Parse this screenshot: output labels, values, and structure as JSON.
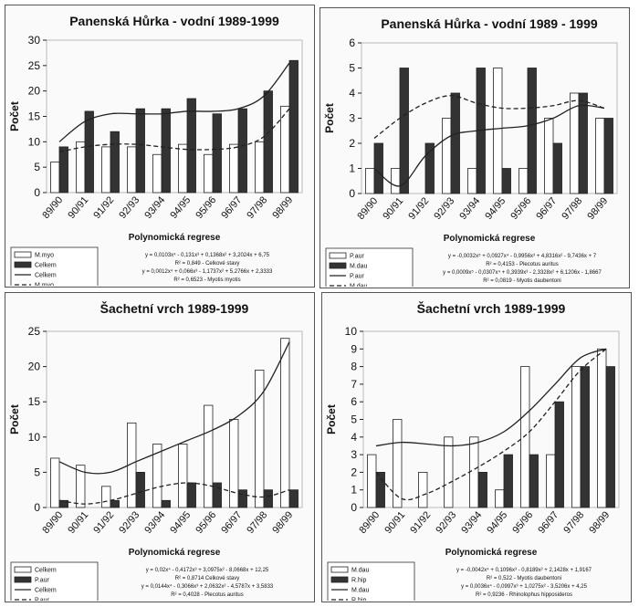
{
  "chart_data": [
    {
      "type": "bar",
      "title": "Panenská Hůrka - vodní 1989-1999",
      "x_label": "Polynomická regrese",
      "y_label": "Počet",
      "categories": [
        "89/90",
        "90/91",
        "91/92",
        "92/93",
        "93/94",
        "94/95",
        "95/96",
        "96/97",
        "97/98",
        "98/99"
      ],
      "ylim": [
        0,
        30
      ],
      "yticks": [
        0,
        5,
        10,
        15,
        20,
        25,
        30
      ],
      "series": [
        {
          "name": "M.myo",
          "type": "bar",
          "color": "#ffffff",
          "values": [
            6,
            10,
            9,
            9,
            7.5,
            9.5,
            7.5,
            9.5,
            10,
            17
          ]
        },
        {
          "name": "Celkem",
          "type": "bar",
          "color": "#333333",
          "values": [
            9,
            16,
            12,
            16.5,
            16.5,
            18.5,
            15.5,
            16.5,
            20,
            26
          ]
        },
        {
          "name": "Celkem",
          "type": "line",
          "color": "#222222",
          "dashed": false,
          "values": [
            10,
            14,
            15.5,
            15.5,
            15.5,
            16,
            16,
            16.5,
            19,
            25.5
          ]
        },
        {
          "name": "M.myo",
          "type": "line",
          "color": "#222222",
          "dashed": true,
          "values": [
            8,
            9,
            9.5,
            9.5,
            9,
            8.5,
            8.5,
            9,
            11,
            16.5
          ]
        }
      ],
      "annotations": [
        "y = 0,0103x⁴ - 0,131x³ + 0,1368x² + 3,2024x + 6,75",
        "R² = 0,849 - Celkové stavy",
        "y = 0,0012x⁴ + 0,066x³ - 1,1737x² + 5,2766x + 2,3333",
        "R² = 0,6523 - Myotis myotis"
      ]
    },
    {
      "type": "bar",
      "title": "Panenská Hůrka - vodní 1989 - 1999",
      "x_label": "Polynomická regrese",
      "y_label": "Počet",
      "categories": [
        "89/90",
        "90/91",
        "91/92",
        "92/93",
        "93/94",
        "94/95",
        "95/96",
        "96/97",
        "97/98",
        "98/99"
      ],
      "ylim": [
        0,
        6
      ],
      "yticks": [
        0,
        1,
        2,
        3,
        4,
        5,
        6
      ],
      "series": [
        {
          "name": "P.aur",
          "type": "bar",
          "color": "#ffffff",
          "values": [
            1,
            1,
            0,
            3,
            1,
            5,
            1,
            3,
            4,
            3
          ]
        },
        {
          "name": "M.dau",
          "type": "bar",
          "color": "#333333",
          "values": [
            2,
            5,
            2,
            4,
            5,
            1,
            5,
            2,
            4,
            3
          ]
        },
        {
          "name": "P.aur",
          "type": "line",
          "color": "#222222",
          "dashed": false,
          "values": [
            1,
            0.3,
            1.5,
            2.3,
            2.5,
            2.6,
            2.7,
            3,
            3.5,
            3.4
          ]
        },
        {
          "name": "M.dau",
          "type": "line",
          "color": "#222222",
          "dashed": true,
          "values": [
            2.2,
            3,
            3.6,
            3.9,
            3.6,
            3.4,
            3.4,
            3.5,
            3.7,
            3.4
          ]
        }
      ],
      "annotations": [
        "y = -0,0032x⁵ + 0,0927x⁴ - 0,9956x³ + 4,8316x² - 9,7436x + 7",
        "R² = 0,4153 - Plecotus auritus",
        "y = 0,0009x⁵ - 0,0307x⁴ + 0,3939x³ - 2,3328x² + 6,1206x - 1,8667",
        "R² = 0,0819 - Myotis daubentoni"
      ]
    },
    {
      "type": "bar",
      "title": "Šachetní vrch 1989-1999",
      "x_label": "Polynomická regrese",
      "y_label": "Počet",
      "categories": [
        "89/90",
        "90/91",
        "91/92",
        "92/93",
        "93/94",
        "94/95",
        "95/96",
        "96/97",
        "97/98",
        "98/99"
      ],
      "ylim": [
        0,
        25
      ],
      "yticks": [
        0,
        5,
        10,
        15,
        20,
        25
      ],
      "series": [
        {
          "name": "Celkem",
          "type": "bar",
          "color": "#ffffff",
          "values": [
            7,
            6,
            3,
            12,
            9,
            9,
            14.5,
            12.5,
            19.5,
            24
          ]
        },
        {
          "name": "P.aur",
          "type": "bar",
          "color": "#333333",
          "values": [
            1,
            0,
            1,
            5,
            1,
            3.5,
            3.5,
            2.5,
            2.5,
            2.5
          ]
        },
        {
          "name": "Celkem",
          "type": "line",
          "color": "#222222",
          "dashed": false,
          "values": [
            6.5,
            5,
            5,
            6.5,
            8,
            9.5,
            11,
            13,
            16.5,
            23.5
          ]
        },
        {
          "name": "P.aur",
          "type": "line",
          "color": "#222222",
          "dashed": true,
          "values": [
            1,
            0.5,
            1,
            2,
            3,
            3.5,
            3,
            2,
            1.5,
            2.5
          ]
        }
      ],
      "annotations": [
        "y = 0,02x⁴ - 0,4172x³ + 3,0975x² - 8,0668x + 12,25",
        "R² = 0,8714 Celkové stavy",
        "y = 0,0144x⁴ - 0,3066x³ + 2,0632x² - 4,5787x + 3,5833",
        "R² = 0,4028 - Plecotus auritus"
      ]
    },
    {
      "type": "bar",
      "title": "Šachetní vrch 1989-1999",
      "x_label": "Polynomická regrese",
      "y_label": "Počet",
      "categories": [
        "89/90",
        "90/91",
        "91/92",
        "92/93",
        "93/94",
        "94/95",
        "95/96",
        "96/97",
        "97/98",
        "98/99"
      ],
      "ylim": [
        0,
        10
      ],
      "yticks": [
        0,
        1,
        2,
        3,
        4,
        5,
        6,
        7,
        8,
        9,
        10
      ],
      "series": [
        {
          "name": "M.dau",
          "type": "bar",
          "color": "#ffffff",
          "values": [
            3,
            5,
            2,
            4,
            4,
            1,
            8,
            3,
            8,
            9
          ]
        },
        {
          "name": "R.hip",
          "type": "bar",
          "color": "#333333",
          "values": [
            2,
            0,
            0,
            0,
            2,
            3,
            3,
            6,
            8,
            8
          ]
        },
        {
          "name": "M.dau",
          "type": "line",
          "color": "#222222",
          "dashed": false,
          "values": [
            3.5,
            3.7,
            3.6,
            3.5,
            3.7,
            4.3,
            5.5,
            7,
            8.5,
            9
          ]
        },
        {
          "name": "R.hip",
          "type": "line",
          "color": "#222222",
          "dashed": true,
          "values": [
            2,
            0.5,
            0.8,
            1.5,
            2.3,
            3.2,
            4.3,
            6,
            7.8,
            9
          ]
        }
      ],
      "annotations": [
        "y = -0,0042x⁴ + 0,1096x³ - 0,8189x² + 2,1428x + 1,9167",
        "R² = 0,522 - Myotis daubentoni",
        "y = 0,0036x⁴ - 0,0997x³ + 1,0275x² - 3,5206x + 4,25",
        "R² = 0,9236 - Rhinolophus hipposideros"
      ]
    }
  ]
}
